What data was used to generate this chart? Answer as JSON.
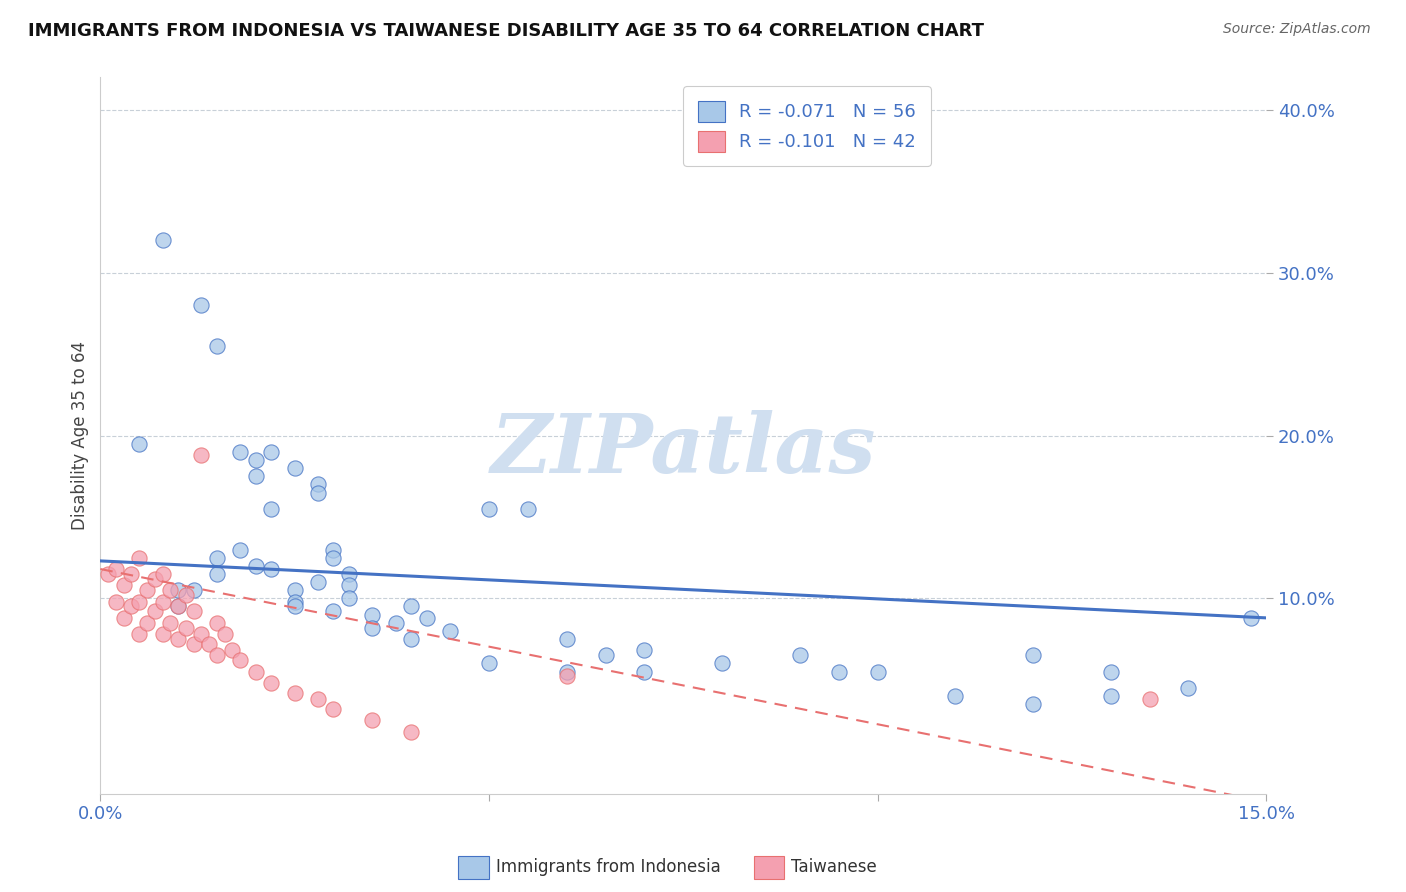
{
  "title": "IMMIGRANTS FROM INDONESIA VS TAIWANESE DISABILITY AGE 35 TO 64 CORRELATION CHART",
  "source": "Source: ZipAtlas.com",
  "ylabel": "Disability Age 35 to 64",
  "xlim": [
    0.0,
    0.15
  ],
  "ylim": [
    -0.02,
    0.42
  ],
  "xticks": [
    0.0,
    0.05,
    0.1,
    0.15
  ],
  "xticklabels": [
    "0.0%",
    "",
    "",
    "15.0%"
  ],
  "yticks": [
    0.1,
    0.2,
    0.3,
    0.4
  ],
  "yticklabels": [
    "10.0%",
    "20.0%",
    "30.0%",
    "40.0%"
  ],
  "legend1_label": "Immigrants from Indonesia",
  "legend2_label": "Taiwanese",
  "R1": -0.071,
  "N1": 56,
  "R2": -0.101,
  "N2": 42,
  "color_blue": "#a8c8e8",
  "color_pink": "#f4a0b0",
  "color_blue_line": "#4472c4",
  "color_pink_line": "#e87070",
  "watermark": "ZIPatlas",
  "watermark_color": "#d0dff0",
  "blue_scatter_x": [
    0.008,
    0.013,
    0.015,
    0.018,
    0.02,
    0.02,
    0.022,
    0.022,
    0.025,
    0.028,
    0.028,
    0.03,
    0.03,
    0.032,
    0.032,
    0.005,
    0.01,
    0.012,
    0.015,
    0.018,
    0.02,
    0.022,
    0.025,
    0.025,
    0.028,
    0.03,
    0.032,
    0.035,
    0.038,
    0.04,
    0.042,
    0.045,
    0.05,
    0.055,
    0.06,
    0.065,
    0.07,
    0.08,
    0.09,
    0.095,
    0.1,
    0.11,
    0.12,
    0.13,
    0.01,
    0.015,
    0.025,
    0.035,
    0.04,
    0.05,
    0.06,
    0.07,
    0.12,
    0.13,
    0.14,
    0.148
  ],
  "blue_scatter_y": [
    0.32,
    0.28,
    0.255,
    0.19,
    0.185,
    0.175,
    0.19,
    0.155,
    0.18,
    0.17,
    0.165,
    0.13,
    0.125,
    0.115,
    0.108,
    0.195,
    0.095,
    0.105,
    0.115,
    0.13,
    0.12,
    0.118,
    0.105,
    0.098,
    0.11,
    0.092,
    0.1,
    0.09,
    0.085,
    0.095,
    0.088,
    0.08,
    0.155,
    0.155,
    0.075,
    0.065,
    0.068,
    0.06,
    0.065,
    0.055,
    0.055,
    0.04,
    0.065,
    0.055,
    0.105,
    0.125,
    0.095,
    0.082,
    0.075,
    0.06,
    0.055,
    0.055,
    0.035,
    0.04,
    0.045,
    0.088
  ],
  "pink_scatter_x": [
    0.001,
    0.002,
    0.002,
    0.003,
    0.003,
    0.004,
    0.004,
    0.005,
    0.005,
    0.005,
    0.006,
    0.006,
    0.007,
    0.007,
    0.008,
    0.008,
    0.008,
    0.009,
    0.009,
    0.01,
    0.01,
    0.011,
    0.011,
    0.012,
    0.012,
    0.013,
    0.013,
    0.014,
    0.015,
    0.015,
    0.016,
    0.017,
    0.018,
    0.02,
    0.022,
    0.025,
    0.028,
    0.03,
    0.035,
    0.04,
    0.06,
    0.135
  ],
  "pink_scatter_y": [
    0.115,
    0.098,
    0.118,
    0.088,
    0.108,
    0.095,
    0.115,
    0.078,
    0.098,
    0.125,
    0.085,
    0.105,
    0.092,
    0.112,
    0.078,
    0.098,
    0.115,
    0.085,
    0.105,
    0.075,
    0.095,
    0.082,
    0.102,
    0.072,
    0.092,
    0.078,
    0.188,
    0.072,
    0.065,
    0.085,
    0.078,
    0.068,
    0.062,
    0.055,
    0.048,
    0.042,
    0.038,
    0.032,
    0.025,
    0.018,
    0.052,
    0.038
  ],
  "blue_trend_x": [
    0.0,
    0.15
  ],
  "blue_trend_y": [
    0.123,
    0.088
  ],
  "pink_trend_x": [
    0.0,
    0.15
  ],
  "pink_trend_y": [
    0.118,
    -0.025
  ]
}
